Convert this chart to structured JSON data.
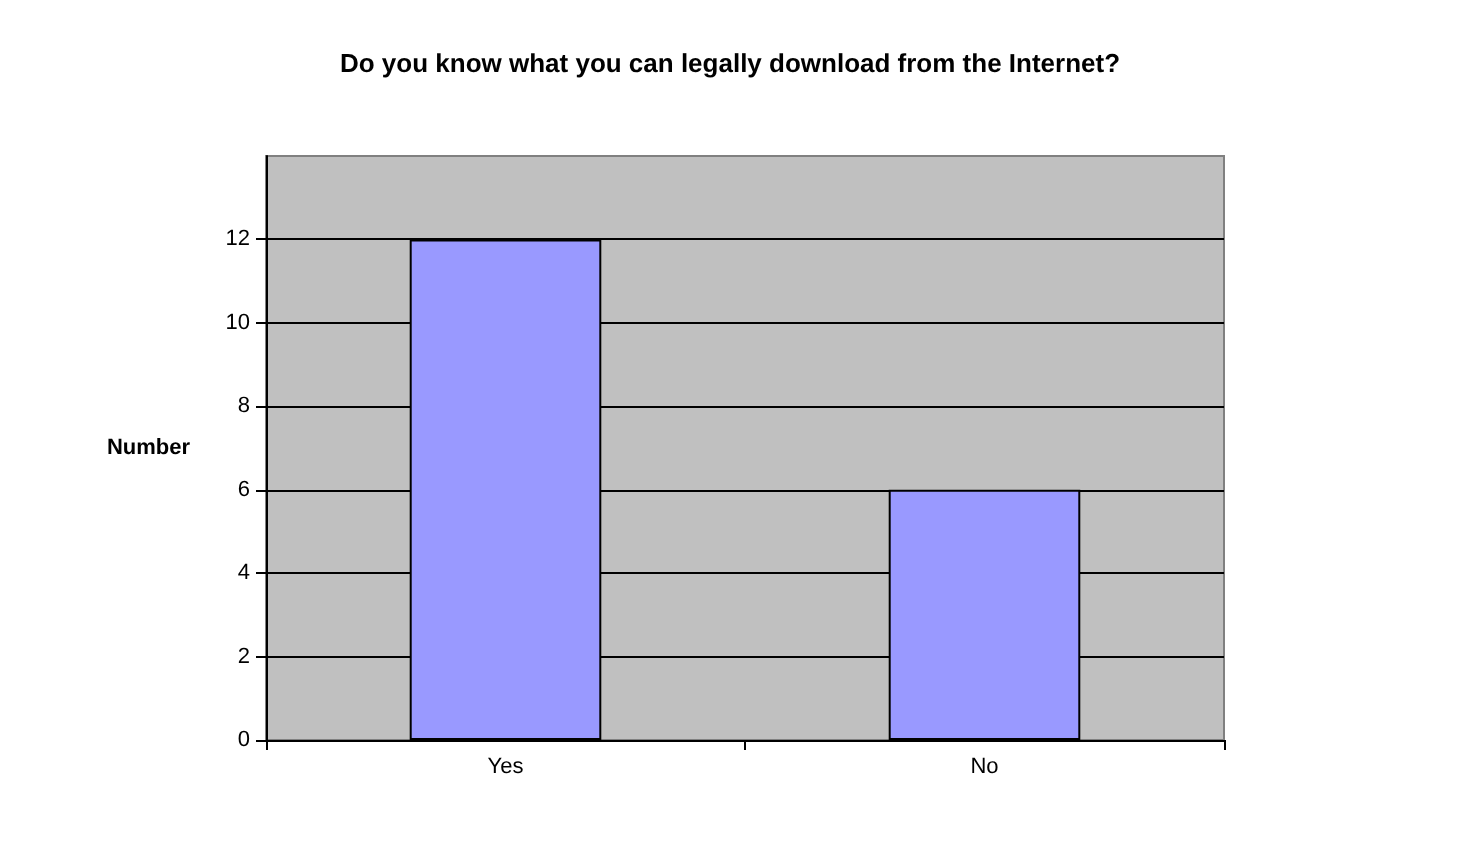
{
  "chart_data": {
    "type": "bar",
    "title": "Do you know what you can legally download from the Internet?",
    "ylabel": "Number",
    "categories": [
      "Yes",
      "No"
    ],
    "series": [
      {
        "color": "#9999ff",
        "values": [
          12,
          6
        ]
      }
    ],
    "ylim": [
      0,
      14
    ],
    "yticks": [
      0,
      2,
      4,
      6,
      8,
      10,
      12
    ],
    "grid": "y"
  }
}
